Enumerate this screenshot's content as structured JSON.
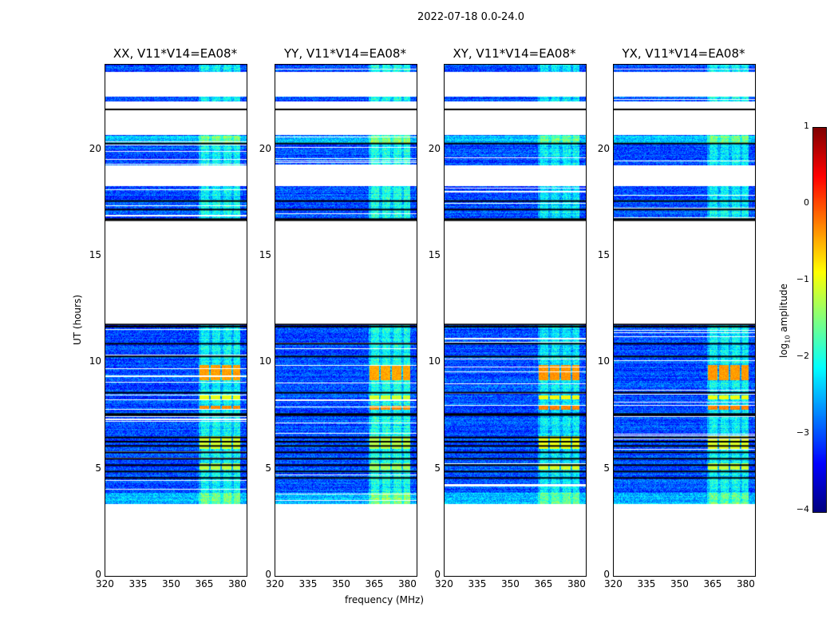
{
  "chart_data": {
    "type": "heatmap",
    "title": "2022-07-18 0.0-24.0",
    "xlabel": "frequency (MHz)",
    "ylabel": "UT (hours)",
    "xlim": [
      320,
      384
    ],
    "ylim": [
      0,
      24
    ],
    "xticks": [
      "320",
      "335",
      "350",
      "365",
      "380"
    ],
    "xtick_values": [
      320,
      335,
      350,
      365,
      380
    ],
    "yticks": [
      "0",
      "5",
      "10",
      "15",
      "20"
    ],
    "ytick_values": [
      0,
      5,
      10,
      15,
      20
    ],
    "panels": [
      {
        "title": "XX, V11*V14=EA08*",
        "rfi_boost": 1.0
      },
      {
        "title": "YY, V11*V14=EA08*",
        "rfi_boost": 1.1
      },
      {
        "title": "XY, V11*V14=EA08*",
        "rfi_boost": 0.9
      },
      {
        "title": "YX, V11*V14=EA08*",
        "rfi_boost": 0.95
      }
    ],
    "data_segments_hours": [
      [
        3.4,
        11.8
      ],
      [
        16.7,
        18.3
      ],
      [
        19.3,
        20.7
      ],
      [
        22.3,
        22.5
      ],
      [
        23.7,
        24.0
      ]
    ],
    "flag_lines_hours": [
      21.9,
      11.8,
      11.7,
      16.7,
      16.75,
      7.6,
      7.55,
      6.5,
      6.3,
      6.1,
      5.8,
      5.5,
      5.2,
      4.9,
      4.6,
      20.3,
      17.2,
      17.6,
      10.9,
      10.3,
      8.6
    ],
    "baseline_log_amplitude": -3.0,
    "rfi_band_mhz": [
      362,
      381
    ],
    "rfi_bright_hours": [
      [
        7.8,
        8.0,
        -0.3
      ],
      [
        9.2,
        9.9,
        -0.4
      ],
      [
        8.3,
        8.5,
        -1.0
      ],
      [
        6.0,
        6.6,
        -1.1
      ],
      [
        5.0,
        5.3,
        -1.2
      ]
    ],
    "colorbar": {
      "label": "log10 amplitude",
      "label_main": "log",
      "label_sub": "10",
      "label_rest": " amplitude",
      "range": [
        -4,
        1
      ],
      "ticks": [
        "1",
        "0",
        "−1",
        "−2",
        "−3",
        "−4"
      ],
      "tick_values": [
        1,
        0,
        -1,
        -2,
        -3,
        -4
      ],
      "colormap": "jet"
    }
  }
}
